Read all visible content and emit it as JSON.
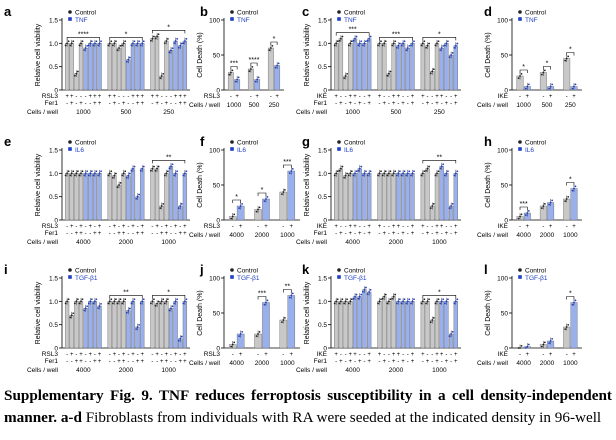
{
  "colors": {
    "control": "#c8c8c8",
    "treated": "#9ab0ec",
    "treated_text": "#1f3fc4",
    "edge": "#666666",
    "dot": "#222222"
  },
  "caption": {
    "bold": "Supplementary Fig. 9. TNF reduces ferroptosis susceptibility in a cell density-independent manner. a-d",
    "rest": " Fibroblasts from individuals with RA were seeded at the indicated density in 96-well"
  },
  "chart_data": [
    {
      "panel": "a",
      "type": "bar",
      "ylabel": "Relative cell viability",
      "ylim": [
        0,
        1.5
      ],
      "yticks": [
        0,
        0.5,
        1.0,
        1.5
      ],
      "ytick_labels": [
        "0",
        "0.5",
        "1.0",
        "1.5"
      ],
      "series": [
        {
          "name": "Control"
        },
        {
          "name": "TNF"
        }
      ],
      "row_labels": [
        "RSL3",
        "Fer1"
      ],
      "groups_label": "Cells / well",
      "groups": [
        "1000",
        "500",
        "250"
      ],
      "group_marks": [
        [
          "+",
          "+",
          "-",
          "-",
          "-",
          "+",
          "+",
          "+"
        ],
        [
          "-",
          "+",
          "-",
          "+",
          "-",
          "-",
          "+",
          "+"
        ]
      ],
      "values": [
        [
          1.0,
          1.0,
          0.35,
          1.0,
          0.9,
          1.0,
          1.0,
          1.0
        ],
        [
          1.0,
          1.0,
          0.9,
          1.0,
          0.65,
          1.0,
          1.0,
          1.0
        ],
        [
          1.1,
          1.15,
          0.3,
          1.05,
          0.85,
          1.05,
          0.95,
          1.05
        ]
      ],
      "sig": [
        {
          "group": 0,
          "text": "****"
        },
        {
          "group": 1,
          "text": "*"
        },
        {
          "group": 2,
          "text": "*"
        }
      ]
    },
    {
      "panel": "b",
      "type": "bar",
      "ylabel": "Cell Death (%)",
      "ylim": [
        0,
        100
      ],
      "yticks": [
        0,
        50,
        100
      ],
      "ytick_labels": [
        "0",
        "50",
        "100"
      ],
      "series": [
        {
          "name": "Control"
        },
        {
          "name": "TNF"
        }
      ],
      "row_labels": [
        "RSL3"
      ],
      "groups_label": "Cells / well",
      "groups": [
        "1000",
        "500",
        "250"
      ],
      "group_marks": [
        [
          "-",
          "+",
          "-",
          "+"
        ]
      ],
      "values": [
        [
          25,
          15
        ],
        [
          30,
          15
        ],
        [
          60,
          35
        ]
      ],
      "sig": [
        {
          "group": 0,
          "text": "***"
        },
        {
          "group": 1,
          "text": "****"
        },
        {
          "group": 2,
          "text": "*"
        }
      ]
    },
    {
      "panel": "c",
      "type": "bar",
      "ylabel": "Relative cell viability",
      "ylim": [
        0,
        1.5
      ],
      "yticks": [
        0,
        0.5,
        1.0,
        1.5
      ],
      "ytick_labels": [
        "0",
        "0.5",
        "1.0",
        "1.5"
      ],
      "series": [
        {
          "name": "Control"
        },
        {
          "name": "TNF"
        }
      ],
      "row_labels": [
        "IKE",
        "Fer1"
      ],
      "groups_label": "Cells / well",
      "groups": [
        "1000",
        "500",
        "250"
      ],
      "group_marks": [
        [
          "+",
          "-",
          "-",
          "+",
          "+",
          "-",
          "-",
          "+"
        ],
        [
          "-",
          "+",
          "-",
          "+",
          "-",
          "+",
          "-",
          "+"
        ]
      ],
      "values": [
        [
          1.0,
          1.1,
          0.3,
          1.0,
          1.1,
          1.0,
          1.0,
          1.1
        ],
        [
          1.0,
          1.0,
          0.35,
          1.0,
          0.95,
          1.0,
          0.9,
          1.0
        ],
        [
          1.0,
          0.95,
          0.4,
          1.0,
          0.9,
          1.0,
          0.75,
          0.95
        ]
      ],
      "sig": [
        {
          "group": 0,
          "text": "***"
        },
        {
          "group": 1,
          "text": "***"
        },
        {
          "group": 2,
          "text": "*"
        }
      ]
    },
    {
      "panel": "d",
      "type": "bar",
      "ylabel": "Cell Death (%)",
      "ylim": [
        0,
        100
      ],
      "yticks": [
        0,
        50,
        100
      ],
      "ytick_labels": [
        "0",
        "50",
        "100"
      ],
      "series": [
        {
          "name": "Control"
        },
        {
          "name": "TNF"
        }
      ],
      "row_labels": [
        "IKE"
      ],
      "groups_label": "Cells / well",
      "groups": [
        "1000",
        "500",
        "250"
      ],
      "group_marks": [
        [
          "-",
          "+",
          "-",
          "+"
        ]
      ],
      "values": [
        [
          20,
          5
        ],
        [
          25,
          5
        ],
        [
          45,
          5
        ]
      ],
      "sig": [
        {
          "group": 0,
          "text": "*"
        },
        {
          "group": 1,
          "text": "*"
        },
        {
          "group": 2,
          "text": "*"
        }
      ]
    },
    {
      "panel": "e",
      "type": "bar",
      "ylabel": "Relative cell viability",
      "ylim": [
        0,
        1.5
      ],
      "yticks": [
        0,
        0.5,
        1.0,
        1.5
      ],
      "ytick_labels": [
        "0",
        "0.5",
        "1.0",
        "1.5"
      ],
      "series": [
        {
          "name": "Control"
        },
        {
          "name": "IL6"
        }
      ],
      "row_labels": [
        "RSL3",
        "Fer1"
      ],
      "groups_label": "Cells / well",
      "groups": [
        "4000",
        "2000",
        "1000"
      ],
      "group_marks": [
        [
          "-",
          "+",
          "-",
          "+",
          "-",
          "+",
          "-",
          "+"
        ],
        [
          "-",
          "-",
          "+",
          "+",
          "-",
          "-",
          "+",
          "+"
        ]
      ],
      "values": [
        [
          1.0,
          1.0,
          1.0,
          1.0,
          1.0,
          1.0,
          1.0,
          1.0
        ],
        [
          1.0,
          0.95,
          0.75,
          1.0,
          0.95,
          1.1,
          0.5,
          1.1
        ],
        [
          1.1,
          1.1,
          0.3,
          1.0,
          1.15,
          1.0,
          0.3,
          1.0
        ]
      ],
      "sig": [
        {
          "group": 2,
          "text": "**"
        }
      ]
    },
    {
      "panel": "f",
      "type": "bar",
      "ylabel": "Cell Death (%)",
      "ylim": [
        0,
        100
      ],
      "yticks": [
        0,
        50,
        100
      ],
      "ytick_labels": [
        "0",
        "50",
        "100"
      ],
      "series": [
        {
          "name": "Control"
        },
        {
          "name": "IL6"
        }
      ],
      "row_labels": [
        "RSL3"
      ],
      "groups_label": "Cells / well",
      "groups": [
        "4000",
        "2000",
        "1000"
      ],
      "group_marks": [
        [
          "-",
          "+",
          "-",
          "+"
        ]
      ],
      "values": [
        [
          5,
          20
        ],
        [
          15,
          30
        ],
        [
          40,
          70
        ]
      ],
      "sig": [
        {
          "group": 0,
          "text": "*"
        },
        {
          "group": 1,
          "text": "*"
        },
        {
          "group": 2,
          "text": "***"
        }
      ]
    },
    {
      "panel": "g",
      "type": "bar",
      "ylabel": "Relative cell viability",
      "ylim": [
        0,
        1.5
      ],
      "yticks": [
        0,
        0.5,
        1.0,
        1.5
      ],
      "ytick_labels": [
        "0",
        "0.5",
        "1.0",
        "1.5"
      ],
      "series": [
        {
          "name": "Control"
        },
        {
          "name": "IL6"
        }
      ],
      "row_labels": [
        "IKE",
        "Fer1"
      ],
      "groups_label": "Cells / well",
      "groups": [
        "4000",
        "2000",
        "1000"
      ],
      "group_marks": [
        [
          "+",
          "-",
          "-",
          "+",
          "+",
          "-",
          "-",
          "+"
        ],
        [
          "-",
          "+",
          "-",
          "+",
          "-",
          "+",
          "-",
          "+"
        ]
      ],
      "values": [
        [
          1.0,
          1.1,
          0.95,
          1.0,
          1.0,
          1.1,
          1.0,
          1.0
        ],
        [
          1.0,
          1.0,
          1.0,
          1.0,
          1.0,
          1.0,
          1.0,
          1.0
        ],
        [
          1.0,
          1.1,
          0.3,
          1.0,
          1.15,
          1.0,
          0.3,
          1.0
        ]
      ],
      "sig": [
        {
          "group": 2,
          "text": "**"
        }
      ]
    },
    {
      "panel": "h",
      "type": "bar",
      "ylabel": "Cell Death (%)",
      "ylim": [
        0,
        100
      ],
      "yticks": [
        0,
        50,
        100
      ],
      "ytick_labels": [
        "0",
        "50",
        "100"
      ],
      "series": [
        {
          "name": "Control"
        },
        {
          "name": "IL6"
        }
      ],
      "row_labels": [
        "IKE"
      ],
      "groups_label": "Cells / well",
      "groups": [
        "4000",
        "2000",
        "1000"
      ],
      "group_marks": [
        [
          "-",
          "+",
          "-",
          "+"
        ]
      ],
      "values": [
        [
          5,
          10
        ],
        [
          20,
          25
        ],
        [
          30,
          45
        ]
      ],
      "sig": [
        {
          "group": 0,
          "text": "***"
        },
        {
          "group": 2,
          "text": "*"
        }
      ]
    },
    {
      "panel": "i",
      "type": "bar",
      "ylabel": "Relative cell viability",
      "ylim": [
        0,
        1.5
      ],
      "yticks": [
        0,
        0.5,
        1.0,
        1.5
      ],
      "ytick_labels": [
        "0",
        "0.5",
        "1.0",
        "1.5"
      ],
      "series": [
        {
          "name": "Control"
        },
        {
          "name": "TGF-β1"
        }
      ],
      "row_labels": [
        "RSL3",
        "Fer1"
      ],
      "groups_label": "Cells / well",
      "groups": [
        "4000",
        "2000",
        "1000"
      ],
      "group_marks": [
        [
          "-",
          "+",
          "-",
          "+",
          "-",
          "+",
          "-",
          "+"
        ],
        [
          "-",
          "-",
          "+",
          "+",
          "-",
          "-",
          "+",
          "+"
        ]
      ],
      "values": [
        [
          1.0,
          0.7,
          1.0,
          1.0,
          0.85,
          1.0,
          1.0,
          0.9
        ],
        [
          1.0,
          1.0,
          1.0,
          1.0,
          0.8,
          1.0,
          0.45,
          1.0
        ],
        [
          1.0,
          0.95,
          1.0,
          1.0,
          0.85,
          1.0,
          0.2,
          1.0
        ]
      ],
      "sig": [
        {
          "group": 1,
          "text": "**"
        },
        {
          "group": 2,
          "text": "*"
        }
      ]
    },
    {
      "panel": "j",
      "type": "bar",
      "ylabel": "Cell Death (%)",
      "ylim": [
        0,
        100
      ],
      "yticks": [
        0,
        50,
        100
      ],
      "ytick_labels": [
        "0",
        "50",
        "100"
      ],
      "series": [
        {
          "name": "Control"
        },
        {
          "name": "TGF-β1"
        }
      ],
      "row_labels": [
        "RSL3"
      ],
      "groups_label": "Cells / well",
      "groups": [
        "4000",
        "2000",
        "1000"
      ],
      "group_marks": [
        [
          "-",
          "+",
          "-",
          "+"
        ]
      ],
      "values": [
        [
          5,
          20
        ],
        [
          20,
          65
        ],
        [
          40,
          75
        ]
      ],
      "sig": [
        {
          "group": 1,
          "text": "***"
        },
        {
          "group": 2,
          "text": "**"
        }
      ]
    },
    {
      "panel": "k",
      "type": "bar",
      "ylabel": "Relative cell viability",
      "ylim": [
        0,
        1.5
      ],
      "yticks": [
        0,
        0.5,
        1.0,
        1.5
      ],
      "ytick_labels": [
        "0",
        "0.5",
        "1.0",
        "1.5"
      ],
      "series": [
        {
          "name": "Control"
        },
        {
          "name": "TGF-β1"
        }
      ],
      "row_labels": [
        "IKE",
        "Fer1"
      ],
      "groups_label": "Cells / well",
      "groups": [
        "4000",
        "2000",
        "1000"
      ],
      "group_marks": [
        [
          "+",
          "-",
          "-",
          "+",
          "+",
          "-",
          "-",
          "+"
        ],
        [
          "-",
          "+",
          "-",
          "+",
          "-",
          "+",
          "-",
          "+"
        ]
      ],
      "values": [
        [
          1.0,
          1.0,
          1.0,
          1.0,
          1.1,
          1.1,
          1.25,
          1.2
        ],
        [
          1.0,
          1.1,
          1.0,
          1.1,
          1.0,
          1.0,
          1.0,
          1.0
        ],
        [
          1.0,
          1.0,
          0.6,
          1.0,
          1.0,
          1.0,
          0.3,
          1.0
        ]
      ],
      "sig": [
        {
          "group": 2,
          "text": "*"
        }
      ]
    },
    {
      "panel": "l",
      "type": "bar",
      "ylabel": "Cell Death (%)",
      "ylim": [
        0,
        100
      ],
      "yticks": [
        0,
        50,
        100
      ],
      "ytick_labels": [
        "0",
        "50",
        "100"
      ],
      "series": [
        {
          "name": "Control"
        },
        {
          "name": "TGF-β1"
        }
      ],
      "row_labels": [
        "IKE"
      ],
      "groups_label": "Cells / well",
      "groups": [
        "4000",
        "2000",
        "1000"
      ],
      "group_marks": [
        [
          "-",
          "+",
          "-",
          "+"
        ]
      ],
      "values": [
        [
          0,
          2
        ],
        [
          5,
          10
        ],
        [
          30,
          65
        ]
      ],
      "sig": [
        {
          "group": 2,
          "text": "*"
        }
      ]
    }
  ]
}
